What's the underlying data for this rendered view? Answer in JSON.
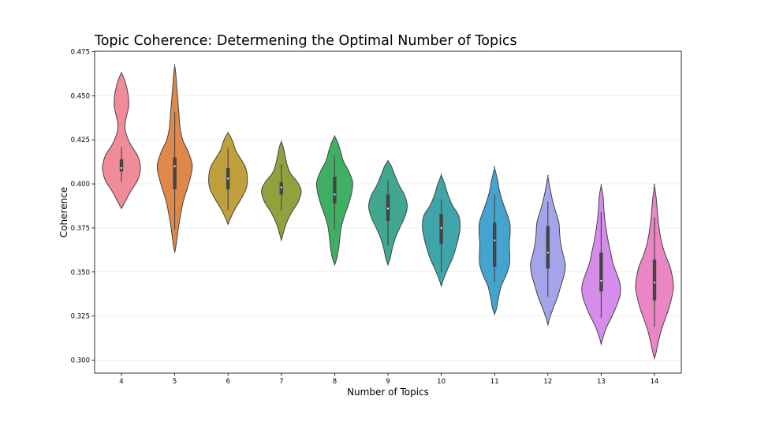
{
  "chart_data": {
    "type": "violin",
    "title": "Topic Coherence: Determening the Optimal Number of Topics",
    "xlabel": "Number of Topics",
    "ylabel": "Coherence",
    "ylim": [
      0.292,
      0.475
    ],
    "yticks": [
      "0.300",
      "0.325",
      "0.350",
      "0.375",
      "0.400",
      "0.425",
      "0.450",
      "0.475"
    ],
    "grid": "horizontal",
    "categories": [
      "4",
      "5",
      "6",
      "7",
      "8",
      "9",
      "10",
      "11",
      "12",
      "13",
      "14"
    ],
    "series": [
      {
        "category": "4",
        "color": "#f08b99",
        "min": 0.401,
        "q1": 0.407,
        "median": 0.409,
        "q3": 0.414,
        "max": 0.421,
        "kde_low": 0.386,
        "kde_high": 0.463,
        "profile": [
          [
            0.386,
            0.0
          ],
          [
            0.39,
            0.2
          ],
          [
            0.396,
            0.5
          ],
          [
            0.402,
            0.85
          ],
          [
            0.409,
            1.0
          ],
          [
            0.416,
            0.85
          ],
          [
            0.422,
            0.5
          ],
          [
            0.428,
            0.26
          ],
          [
            0.433,
            0.18
          ],
          [
            0.438,
            0.26
          ],
          [
            0.444,
            0.38
          ],
          [
            0.45,
            0.36
          ],
          [
            0.456,
            0.25
          ],
          [
            0.46,
            0.13
          ],
          [
            0.463,
            0.0
          ]
        ]
      },
      {
        "category": "5",
        "color": "#e0874a",
        "min": 0.374,
        "q1": 0.397,
        "median": 0.41,
        "q3": 0.415,
        "max": 0.441,
        "kde_low": 0.361,
        "kde_high": 0.467,
        "profile": [
          [
            0.361,
            0.0
          ],
          [
            0.366,
            0.08
          ],
          [
            0.374,
            0.18
          ],
          [
            0.382,
            0.3
          ],
          [
            0.39,
            0.45
          ],
          [
            0.398,
            0.68
          ],
          [
            0.406,
            0.88
          ],
          [
            0.411,
            0.92
          ],
          [
            0.418,
            0.72
          ],
          [
            0.425,
            0.42
          ],
          [
            0.432,
            0.28
          ],
          [
            0.44,
            0.22
          ],
          [
            0.448,
            0.16
          ],
          [
            0.456,
            0.1
          ],
          [
            0.462,
            0.06
          ],
          [
            0.467,
            0.0
          ]
        ]
      },
      {
        "category": "6",
        "color": "#bfa03c",
        "min": 0.385,
        "q1": 0.397,
        "median": 0.403,
        "q3": 0.409,
        "max": 0.42,
        "kde_low": 0.377,
        "kde_high": 0.429,
        "profile": [
          [
            0.377,
            0.0
          ],
          [
            0.381,
            0.15
          ],
          [
            0.386,
            0.38
          ],
          [
            0.392,
            0.72
          ],
          [
            0.398,
            0.98
          ],
          [
            0.404,
            1.02
          ],
          [
            0.41,
            0.9
          ],
          [
            0.415,
            0.62
          ],
          [
            0.419,
            0.4
          ],
          [
            0.423,
            0.28
          ],
          [
            0.427,
            0.12
          ],
          [
            0.429,
            0.0
          ]
        ]
      },
      {
        "category": "7",
        "color": "#8fa23e",
        "min": 0.385,
        "q1": 0.394,
        "median": 0.398,
        "q3": 0.401,
        "max": 0.411,
        "kde_low": 0.368,
        "kde_high": 0.424,
        "profile": [
          [
            0.368,
            0.0
          ],
          [
            0.372,
            0.1
          ],
          [
            0.378,
            0.28
          ],
          [
            0.384,
            0.55
          ],
          [
            0.39,
            0.9
          ],
          [
            0.396,
            1.05
          ],
          [
            0.401,
            0.85
          ],
          [
            0.406,
            0.48
          ],
          [
            0.411,
            0.3
          ],
          [
            0.417,
            0.18
          ],
          [
            0.421,
            0.1
          ],
          [
            0.424,
            0.0
          ]
        ]
      },
      {
        "category": "8",
        "color": "#3fb063",
        "min": 0.374,
        "q1": 0.389,
        "median": 0.394,
        "q3": 0.404,
        "max": 0.416,
        "kde_low": 0.354,
        "kde_high": 0.427,
        "profile": [
          [
            0.354,
            0.0
          ],
          [
            0.358,
            0.12
          ],
          [
            0.364,
            0.22
          ],
          [
            0.37,
            0.28
          ],
          [
            0.376,
            0.36
          ],
          [
            0.382,
            0.52
          ],
          [
            0.388,
            0.72
          ],
          [
            0.395,
            0.9
          ],
          [
            0.401,
            0.95
          ],
          [
            0.407,
            0.75
          ],
          [
            0.413,
            0.46
          ],
          [
            0.419,
            0.3
          ],
          [
            0.424,
            0.14
          ],
          [
            0.427,
            0.0
          ]
        ]
      },
      {
        "category": "9",
        "color": "#3fa88e",
        "min": 0.365,
        "q1": 0.379,
        "median": 0.386,
        "q3": 0.394,
        "max": 0.402,
        "kde_low": 0.354,
        "kde_high": 0.413,
        "profile": [
          [
            0.354,
            0.0
          ],
          [
            0.358,
            0.12
          ],
          [
            0.363,
            0.22
          ],
          [
            0.369,
            0.38
          ],
          [
            0.375,
            0.62
          ],
          [
            0.381,
            0.88
          ],
          [
            0.387,
            1.02
          ],
          [
            0.393,
            0.9
          ],
          [
            0.399,
            0.6
          ],
          [
            0.405,
            0.36
          ],
          [
            0.41,
            0.18
          ],
          [
            0.413,
            0.0
          ]
        ]
      },
      {
        "category": "10",
        "color": "#40a5a8",
        "min": 0.35,
        "q1": 0.366,
        "median": 0.375,
        "q3": 0.383,
        "max": 0.391,
        "kde_low": 0.342,
        "kde_high": 0.405,
        "profile": [
          [
            0.342,
            0.0
          ],
          [
            0.346,
            0.12
          ],
          [
            0.352,
            0.35
          ],
          [
            0.358,
            0.6
          ],
          [
            0.364,
            0.78
          ],
          [
            0.37,
            0.92
          ],
          [
            0.376,
            1.0
          ],
          [
            0.382,
            0.92
          ],
          [
            0.388,
            0.58
          ],
          [
            0.394,
            0.35
          ],
          [
            0.4,
            0.18
          ],
          [
            0.405,
            0.0
          ]
        ]
      },
      {
        "category": "11",
        "color": "#45a3d0",
        "min": 0.344,
        "q1": 0.353,
        "median": 0.368,
        "q3": 0.378,
        "max": 0.394,
        "kde_low": 0.326,
        "kde_high": 0.409,
        "profile": [
          [
            0.326,
            0.0
          ],
          [
            0.33,
            0.12
          ],
          [
            0.336,
            0.22
          ],
          [
            0.342,
            0.35
          ],
          [
            0.348,
            0.6
          ],
          [
            0.354,
            0.78
          ],
          [
            0.36,
            0.8
          ],
          [
            0.366,
            0.78
          ],
          [
            0.372,
            0.82
          ],
          [
            0.378,
            0.8
          ],
          [
            0.384,
            0.62
          ],
          [
            0.39,
            0.42
          ],
          [
            0.396,
            0.26
          ],
          [
            0.402,
            0.16
          ],
          [
            0.409,
            0.0
          ]
        ]
      },
      {
        "category": "12",
        "color": "#a3a4ea",
        "min": 0.336,
        "q1": 0.352,
        "median": 0.361,
        "q3": 0.376,
        "max": 0.39,
        "kde_low": 0.32,
        "kde_high": 0.404,
        "profile": [
          [
            0.32,
            0.0
          ],
          [
            0.324,
            0.1
          ],
          [
            0.33,
            0.3
          ],
          [
            0.336,
            0.52
          ],
          [
            0.342,
            0.68
          ],
          [
            0.348,
            0.85
          ],
          [
            0.354,
            0.92
          ],
          [
            0.36,
            0.8
          ],
          [
            0.366,
            0.68
          ],
          [
            0.372,
            0.62
          ],
          [
            0.378,
            0.58
          ],
          [
            0.384,
            0.42
          ],
          [
            0.39,
            0.26
          ],
          [
            0.396,
            0.14
          ],
          [
            0.404,
            0.0
          ]
        ]
      },
      {
        "category": "13",
        "color": "#d68cea",
        "min": 0.324,
        "q1": 0.339,
        "median": 0.345,
        "q3": 0.361,
        "max": 0.384,
        "kde_low": 0.309,
        "kde_high": 0.399,
        "profile": [
          [
            0.309,
            0.0
          ],
          [
            0.313,
            0.1
          ],
          [
            0.319,
            0.3
          ],
          [
            0.325,
            0.58
          ],
          [
            0.331,
            0.82
          ],
          [
            0.337,
            1.0
          ],
          [
            0.343,
            1.0
          ],
          [
            0.349,
            0.82
          ],
          [
            0.355,
            0.62
          ],
          [
            0.361,
            0.5
          ],
          [
            0.367,
            0.38
          ],
          [
            0.373,
            0.28
          ],
          [
            0.379,
            0.2
          ],
          [
            0.386,
            0.14
          ],
          [
            0.393,
            0.1
          ],
          [
            0.399,
            0.0
          ]
        ]
      },
      {
        "category": "14",
        "color": "#ea86c4",
        "min": 0.319,
        "q1": 0.334,
        "median": 0.344,
        "q3": 0.357,
        "max": 0.381,
        "kde_low": 0.301,
        "kde_high": 0.399,
        "profile": [
          [
            0.301,
            0.0
          ],
          [
            0.305,
            0.1
          ],
          [
            0.311,
            0.22
          ],
          [
            0.317,
            0.36
          ],
          [
            0.323,
            0.55
          ],
          [
            0.329,
            0.75
          ],
          [
            0.335,
            0.9
          ],
          [
            0.341,
            1.0
          ],
          [
            0.347,
            0.95
          ],
          [
            0.353,
            0.82
          ],
          [
            0.359,
            0.6
          ],
          [
            0.365,
            0.42
          ],
          [
            0.371,
            0.3
          ],
          [
            0.377,
            0.22
          ],
          [
            0.383,
            0.16
          ],
          [
            0.391,
            0.1
          ],
          [
            0.399,
            0.0
          ]
        ]
      }
    ]
  }
}
